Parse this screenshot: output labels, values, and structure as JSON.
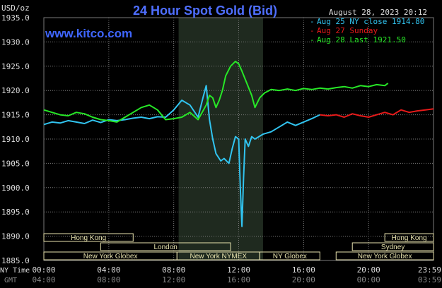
{
  "header": {
    "title": "24 Hour Spot Gold (Bid)",
    "datetime": "August 28, 2023 20:12",
    "unit": "USD/oz",
    "site": "www.kitco.com"
  },
  "axis": {
    "ny_label": "NY Time",
    "gmt_label": "GMT",
    "ny_ticks": [
      "00:00",
      "04:00",
      "08:00",
      "12:00",
      "16:00",
      "20:00",
      "23:59"
    ],
    "gmt_ticks": [
      "04:00",
      "08:00",
      "12:00",
      "16:00",
      "20:00",
      "00:00",
      "03:59"
    ]
  },
  "markets": [
    {
      "name": "Hong Kong",
      "row": 0,
      "start": 0,
      "end": 5.5
    },
    {
      "name": "Hong Kong",
      "row": 0,
      "start": 21,
      "end": 24
    },
    {
      "name": "London",
      "row": 1,
      "start": 3.5,
      "end": 11.5
    },
    {
      "name": "Sydney",
      "row": 1,
      "start": 19,
      "end": 24
    },
    {
      "name": "New York Globex",
      "row": 2,
      "start": 0,
      "end": 8.2
    },
    {
      "name": "New York NYMEX",
      "row": 2,
      "start": 8.2,
      "end": 13.3
    },
    {
      "name": "NY Globex",
      "row": 2,
      "start": 13.3,
      "end": 17
    },
    {
      "name": "New York Globex",
      "row": 2,
      "start": 18,
      "end": 24
    }
  ],
  "colors": {
    "background": "#000000",
    "grid": "#7a7a7a",
    "title": "#4f6fff",
    "site": "#3f66ff",
    "text": "#dddddd",
    "session_band": "#1f2a1f",
    "market_fill": "#e7e2ae",
    "market_text": "#000000",
    "aug25": "#31c4f0",
    "aug27": "#e81a1a",
    "aug28": "#27e827"
  },
  "chart_data": {
    "type": "line",
    "title": "24 Hour Spot Gold (Bid)",
    "ylabel": "USD/oz",
    "xlabel": "NY Time / GMT",
    "xlim": [
      0,
      24
    ],
    "ylim": [
      1885,
      1935
    ],
    "yticks": [
      "1935.0",
      "1930.0",
      "1925.0",
      "1920.0",
      "1915.0",
      "1910.0",
      "1905.0",
      "1900.0",
      "1895.0",
      "1890.0",
      "1885.0"
    ],
    "ytick_values": [
      1935,
      1930,
      1925,
      1920,
      1915,
      1910,
      1905,
      1900,
      1895,
      1890,
      1885
    ],
    "grid": true,
    "legend": "top-right",
    "shaded_session": [
      8.3,
      13.5
    ],
    "series": [
      {
        "name": "Aug 25 NY close 1914.80",
        "color": "#31c4f0",
        "x": [
          0,
          0.5,
          1,
          1.5,
          2,
          2.5,
          3,
          3.5,
          4,
          4.5,
          5,
          5.5,
          6,
          6.5,
          7,
          7.5,
          8,
          8.5,
          9,
          9.5,
          9.8,
          10.0,
          10.2,
          10.4,
          10.6,
          10.9,
          11.1,
          11.4,
          11.6,
          11.8,
          12.0,
          12.1,
          12.2,
          12.3,
          12.4,
          12.6,
          12.8,
          13.0,
          13.5,
          14.0,
          14.5,
          15.0,
          15.5,
          16.0,
          16.5,
          17.0
        ],
        "y": [
          1913.0,
          1913.5,
          1913.3,
          1913.8,
          1913.5,
          1913.2,
          1913.9,
          1913.4,
          1914.0,
          1913.8,
          1914.0,
          1914.3,
          1914.5,
          1914.2,
          1914.6,
          1914.5,
          1916.0,
          1918.0,
          1917.0,
          1914.5,
          1918.5,
          1921.0,
          1914.0,
          1910.0,
          1907.0,
          1905.5,
          1906.0,
          1905.0,
          1908.0,
          1910.5,
          1910.0,
          1900.0,
          1892.0,
          1902.0,
          1910.0,
          1908.5,
          1910.5,
          1910.0,
          1911.0,
          1911.5,
          1912.5,
          1913.5,
          1912.8,
          1913.5,
          1914.2,
          1915.0
        ]
      },
      {
        "name": "Aug 27 Sunday",
        "color": "#e81a1a",
        "x": [
          17.0,
          17.5,
          18.0,
          18.5,
          19.0,
          19.5,
          20.0,
          20.5,
          21.0,
          21.5,
          22.0,
          22.5,
          23.0,
          23.5,
          24.0
        ],
        "y": [
          1915.0,
          1914.8,
          1915.0,
          1914.5,
          1915.2,
          1914.8,
          1914.5,
          1915.0,
          1915.5,
          1915.0,
          1916.0,
          1915.5,
          1915.8,
          1916.0,
          1916.2
        ]
      },
      {
        "name": "Aug 28 Last 1921.50",
        "color": "#27e827",
        "x": [
          0,
          0.5,
          1,
          1.5,
          2,
          2.5,
          3,
          3.5,
          4,
          4.5,
          5,
          5.5,
          6,
          6.5,
          7,
          7.5,
          8,
          8.5,
          9,
          9.5,
          10.0,
          10.2,
          10.4,
          10.6,
          10.8,
          11.0,
          11.2,
          11.5,
          11.8,
          12.0,
          12.2,
          12.5,
          12.8,
          13.0,
          13.3,
          13.6,
          14.0,
          14.5,
          15.0,
          15.5,
          16.0,
          16.5,
          17.0,
          17.5,
          18.0,
          18.5,
          19.0,
          19.5,
          20.0,
          20.5,
          21.0,
          21.2
        ],
        "y": [
          1916.0,
          1915.5,
          1915.0,
          1914.8,
          1915.5,
          1915.2,
          1914.5,
          1914.0,
          1913.8,
          1913.5,
          1914.5,
          1915.5,
          1916.5,
          1917.0,
          1916.0,
          1914.0,
          1914.2,
          1914.5,
          1915.5,
          1914.0,
          1917.0,
          1919.0,
          1918.5,
          1916.5,
          1918.0,
          1920.0,
          1923.0,
          1925.0,
          1926.0,
          1925.5,
          1924.0,
          1921.5,
          1919.0,
          1916.5,
          1918.5,
          1919.5,
          1920.2,
          1920.0,
          1920.3,
          1920.0,
          1920.4,
          1920.2,
          1920.5,
          1920.3,
          1920.6,
          1920.8,
          1920.5,
          1921.0,
          1920.8,
          1921.2,
          1921.0,
          1921.5
        ]
      }
    ]
  }
}
